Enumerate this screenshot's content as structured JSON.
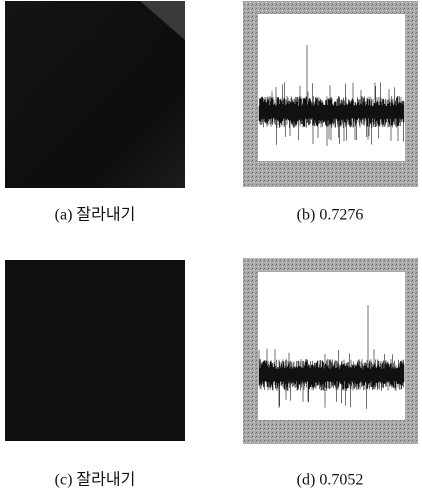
{
  "figure": {
    "panels": [
      {
        "caption": "(a) 잘라내기"
      },
      {
        "caption": "(b) 0.7276"
      },
      {
        "caption": "(c) 잘라내기"
      },
      {
        "caption": "(d) 0.7052"
      }
    ]
  }
}
